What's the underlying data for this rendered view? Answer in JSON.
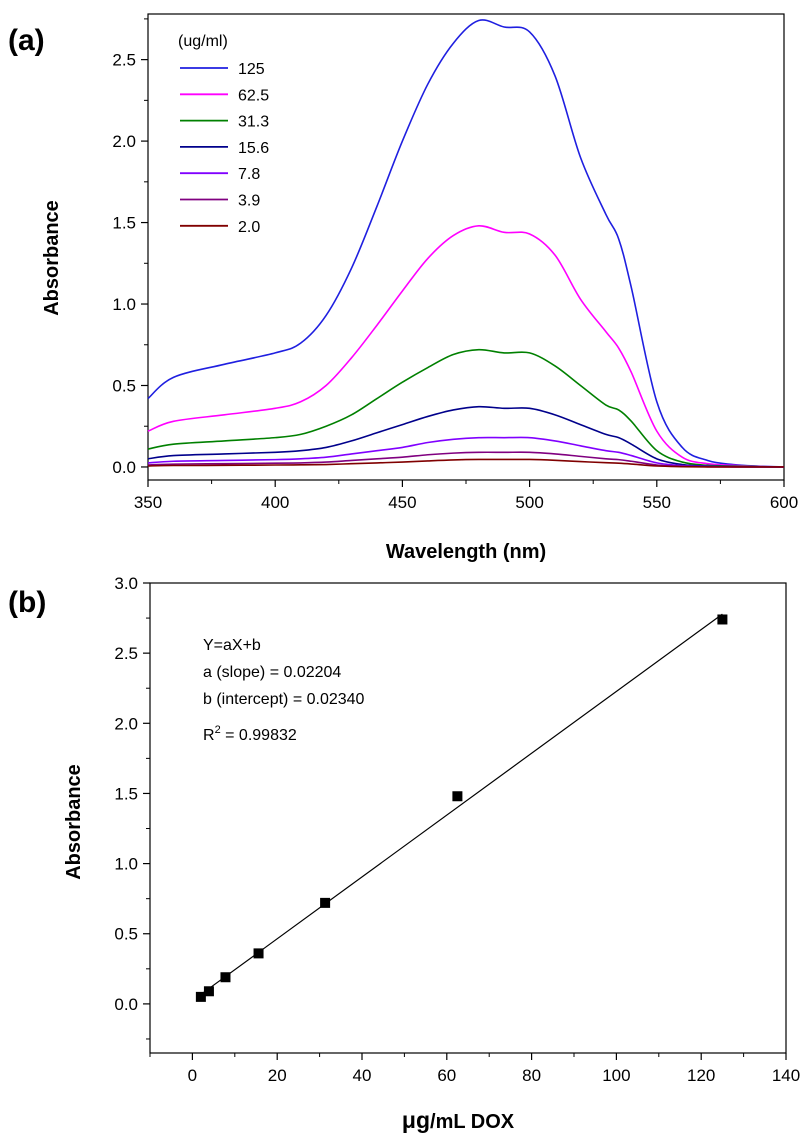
{
  "chart_data": [
    {
      "panel_label": "(a)",
      "type": "line",
      "xlabel": "Wavelength (nm)",
      "ylabel": "Absorbance",
      "xlim": [
        350,
        600
      ],
      "ylim": [
        -0.08,
        2.78
      ],
      "xticks": [
        350,
        400,
        450,
        500,
        550,
        600
      ],
      "xtick_labels": [
        "350",
        "400",
        "450",
        "500",
        "550",
        "600"
      ],
      "yticks": [
        0.0,
        0.5,
        1.0,
        1.5,
        2.0,
        2.5
      ],
      "ytick_labels": [
        "0.0",
        "0.5",
        "1.0",
        "1.5",
        "2.0",
        "2.5"
      ],
      "legend_title": "(ug/ml)",
      "legend_position": "top-left",
      "grid": false,
      "x": [
        350,
        360,
        380,
        400,
        410,
        420,
        430,
        440,
        450,
        460,
        470,
        480,
        490,
        500,
        510,
        520,
        530,
        535,
        540,
        550,
        560,
        570,
        580,
        590,
        600
      ],
      "series": [
        {
          "name": "125",
          "color": "#1f1fe0",
          "values": [
            0.42,
            0.55,
            0.63,
            0.7,
            0.76,
            0.93,
            1.22,
            1.6,
            2.0,
            2.35,
            2.6,
            2.74,
            2.7,
            2.67,
            2.4,
            1.9,
            1.55,
            1.4,
            1.1,
            0.4,
            0.12,
            0.04,
            0.015,
            0.005,
            0.0
          ]
        },
        {
          "name": "62.5",
          "color": "#ff00ff",
          "values": [
            0.22,
            0.28,
            0.32,
            0.36,
            0.4,
            0.5,
            0.67,
            0.87,
            1.08,
            1.28,
            1.42,
            1.48,
            1.44,
            1.43,
            1.3,
            1.03,
            0.83,
            0.73,
            0.58,
            0.22,
            0.06,
            0.02,
            0.01,
            0.003,
            0.0
          ]
        },
        {
          "name": "31.3",
          "color": "#008000",
          "values": [
            0.11,
            0.14,
            0.16,
            0.18,
            0.2,
            0.25,
            0.32,
            0.42,
            0.52,
            0.61,
            0.69,
            0.72,
            0.7,
            0.7,
            0.62,
            0.5,
            0.38,
            0.35,
            0.28,
            0.1,
            0.03,
            0.01,
            0.005,
            0.002,
            0.0
          ]
        },
        {
          "name": "15.6",
          "color": "#00008b",
          "values": [
            0.05,
            0.07,
            0.08,
            0.09,
            0.1,
            0.12,
            0.16,
            0.21,
            0.26,
            0.31,
            0.35,
            0.37,
            0.36,
            0.36,
            0.32,
            0.26,
            0.2,
            0.18,
            0.14,
            0.05,
            0.015,
            0.005,
            0.002,
            0.001,
            0.0
          ]
        },
        {
          "name": "7.8",
          "color": "#8000ff",
          "values": [
            0.025,
            0.035,
            0.04,
            0.045,
            0.05,
            0.06,
            0.08,
            0.1,
            0.12,
            0.15,
            0.17,
            0.18,
            0.18,
            0.18,
            0.16,
            0.13,
            0.1,
            0.09,
            0.07,
            0.025,
            0.008,
            0.003,
            0.001,
            0.0,
            0.0
          ]
        },
        {
          "name": "3.9",
          "color": "#800080",
          "values": [
            0.012,
            0.017,
            0.02,
            0.023,
            0.025,
            0.03,
            0.04,
            0.05,
            0.06,
            0.075,
            0.085,
            0.09,
            0.09,
            0.09,
            0.08,
            0.065,
            0.05,
            0.045,
            0.035,
            0.012,
            0.004,
            0.001,
            0.0,
            0.0,
            0.0
          ]
        },
        {
          "name": "2.0",
          "color": "#800000",
          "values": [
            0.006,
            0.009,
            0.01,
            0.012,
            0.013,
            0.015,
            0.02,
            0.025,
            0.03,
            0.037,
            0.043,
            0.046,
            0.046,
            0.046,
            0.041,
            0.033,
            0.026,
            0.023,
            0.018,
            0.006,
            0.002,
            0.0,
            0.0,
            0.0,
            0.0
          ]
        }
      ]
    },
    {
      "panel_label": "(b)",
      "type": "scatter",
      "xlabel_prefix": "μg",
      "xlabel_suffix": "/mL DOX",
      "ylabel": "Absorbance",
      "xlim": [
        -10,
        140
      ],
      "ylim": [
        -0.35,
        3.0
      ],
      "xticks": [
        0,
        20,
        40,
        60,
        80,
        100,
        120,
        140
      ],
      "xtick_labels": [
        "0",
        "20",
        "40",
        "60",
        "80",
        "100",
        "120",
        "140"
      ],
      "yticks": [
        0.0,
        0.5,
        1.0,
        1.5,
        2.0,
        2.5,
        3.0
      ],
      "ytick_labels": [
        "0.0",
        "0.5",
        "1.0",
        "1.5",
        "2.0",
        "2.5",
        "3.0"
      ],
      "grid": false,
      "points": {
        "x": [
          2.0,
          3.9,
          7.8,
          15.6,
          31.3,
          62.5,
          125
        ],
        "y": [
          0.05,
          0.09,
          0.19,
          0.36,
          0.72,
          1.48,
          2.74
        ]
      },
      "fit_line": {
        "slope": 0.02204,
        "intercept": 0.0234,
        "x_range": [
          2.0,
          125
        ]
      },
      "annotations": {
        "equation": "Y=aX+b",
        "slope": "a (slope) = 0.02204",
        "intercept": "b (intercept) = 0.02340",
        "r2_prefix": "R",
        "r2_sup": "2",
        "r2_value": " = 0.99832"
      }
    }
  ]
}
